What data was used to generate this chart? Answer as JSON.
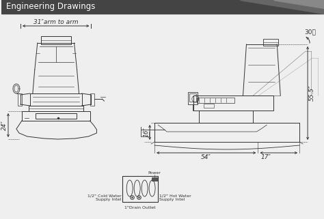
{
  "title": "Engineering Drawings",
  "title_bg": "#444444",
  "title_color": "white",
  "bg_color": "#efefef",
  "line_color": "#333333",
  "font_size": 6.5,
  "dims": {
    "arm_to_arm": "31″arm to arm",
    "height_left": "24″",
    "tub_height": "16″",
    "total_height": "55.5″",
    "tub_width": "54″",
    "back_width": "17″",
    "angle": "30度"
  }
}
